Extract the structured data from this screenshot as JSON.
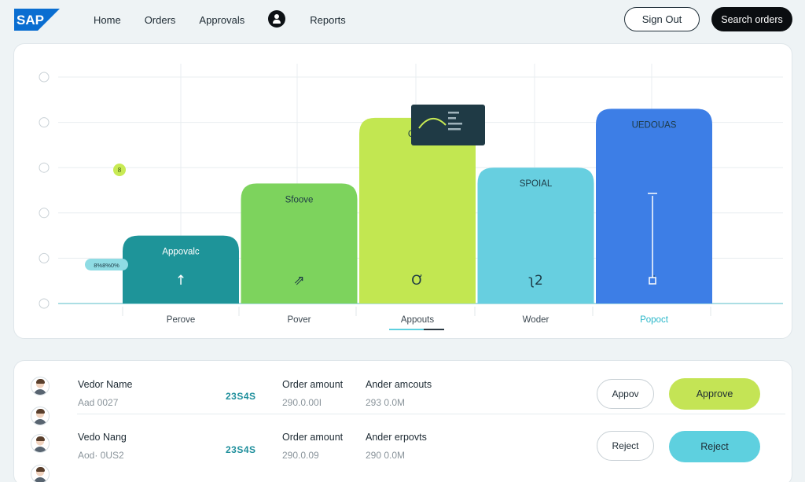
{
  "header": {
    "logo_text": "SAP",
    "nav": [
      "Home",
      "Orders",
      "Approvals",
      "Reports"
    ],
    "sign_out_label": "Sign Out",
    "search_label": "Search orders"
  },
  "chart_data": {
    "type": "bar",
    "categories": [
      "Perove",
      "Pover",
      "Appouts",
      "Woder",
      "Popoct"
    ],
    "bar_labels": [
      "Appovalc",
      "Sfoove",
      "CER",
      "SPOIAL",
      "UEDOUAS"
    ],
    "bar_icons": [
      "↑",
      "⇗",
      "Ơ",
      "ʅ2",
      "⍿"
    ],
    "values": [
      1.5,
      2.65,
      4.1,
      3.0,
      4.3
    ],
    "ylim": [
      0,
      5
    ],
    "colors": [
      "#1e9499",
      "#7dd35d",
      "#c2e751",
      "#67cfe0",
      "#3d7ee6"
    ],
    "highlight_category": "Popoct",
    "highlight_color": "#2ab7c9",
    "y_marker_label": "8%8%0%",
    "green_dot_label": "8",
    "grid": true
  },
  "table": {
    "rows": [
      {
        "name": "Vedor Name",
        "sub": "Aad  0027",
        "code": "23S4S",
        "c3_head": "Order  amount",
        "c3_sub": "290.0.00I",
        "c4_head": "Ander  amcouts",
        "c4_sub": "293 0.0M",
        "outline_label": "Appov",
        "action_label": "Approve",
        "action_color": "#c4e455"
      },
      {
        "name": "Vedo Nang",
        "sub": "Aod· 0US2",
        "code": "23S4S",
        "c3_head": "Order  amount",
        "c3_sub": "290.0.09",
        "c4_head": "Ander  erpovts",
        "c4_sub": "290 0.0M",
        "outline_label": "Reject",
        "action_label": "Reject",
        "action_color": "#5ed0df"
      }
    ]
  },
  "icons": [
    "sap-logo",
    "user-icon",
    "arrow-up-icon",
    "trend-icon",
    "timer-icon",
    "slider-icon",
    "sparkline-icon"
  ]
}
